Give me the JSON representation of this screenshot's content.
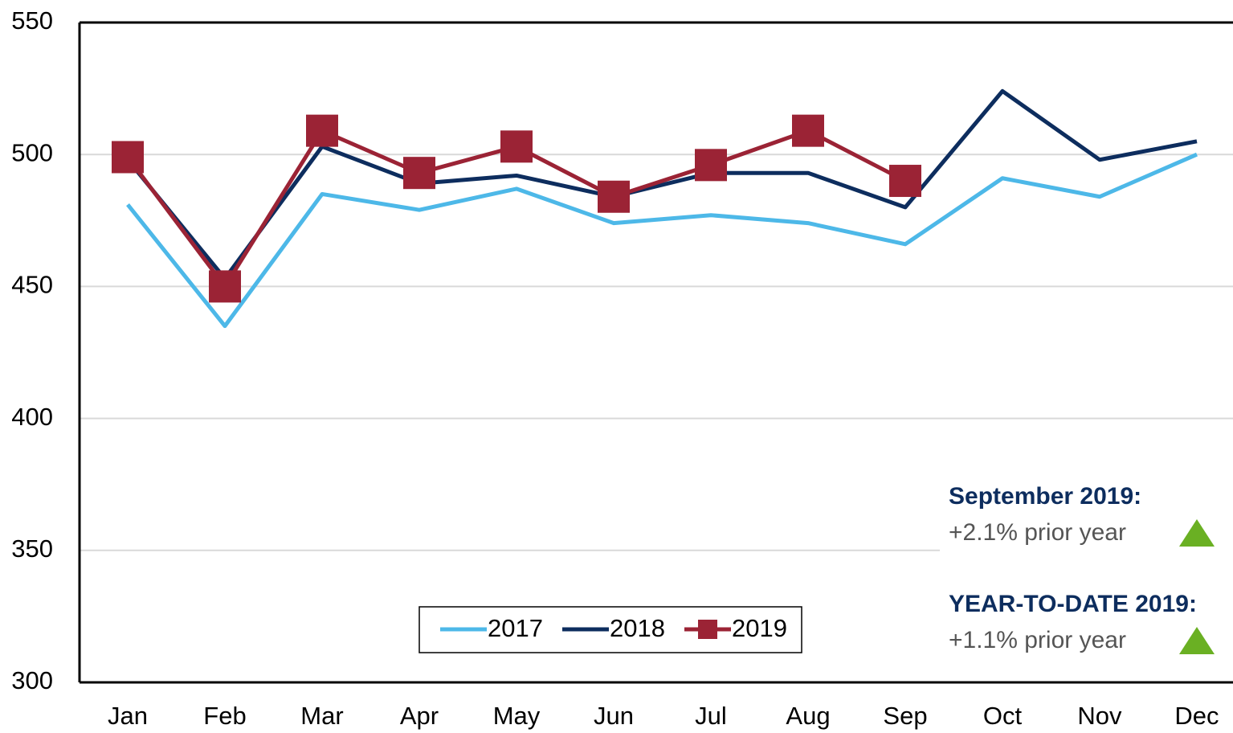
{
  "chart_data": {
    "type": "line",
    "categories": [
      "Jan",
      "Feb",
      "Mar",
      "Apr",
      "May",
      "Jun",
      "Jul",
      "Aug",
      "Sep",
      "Oct",
      "Nov",
      "Dec"
    ],
    "series": [
      {
        "name": "2017",
        "color": "#4db8e8",
        "values": [
          481,
          435,
          485,
          479,
          487,
          474,
          477,
          474,
          466,
          491,
          484,
          500
        ]
      },
      {
        "name": "2018",
        "color": "#0d2d5e",
        "values": [
          498,
          453,
          503,
          489,
          492,
          484,
          493,
          493,
          480,
          524,
          498,
          505
        ]
      },
      {
        "name": "2019",
        "color": "#9b2335",
        "marker": "square",
        "values": [
          499,
          450,
          509,
          493,
          503,
          484,
          496,
          509,
          490,
          null,
          null,
          null
        ]
      }
    ],
    "ylim": [
      300,
      550
    ],
    "yticks": [
      300,
      350,
      400,
      450,
      500,
      550
    ],
    "grid": true,
    "annotations": [
      {
        "title": "September 2019:",
        "text": "+2.1% prior year"
      },
      {
        "title": "YEAR-TO-DATE 2019:",
        "text": "+1.1% prior year"
      }
    ]
  }
}
